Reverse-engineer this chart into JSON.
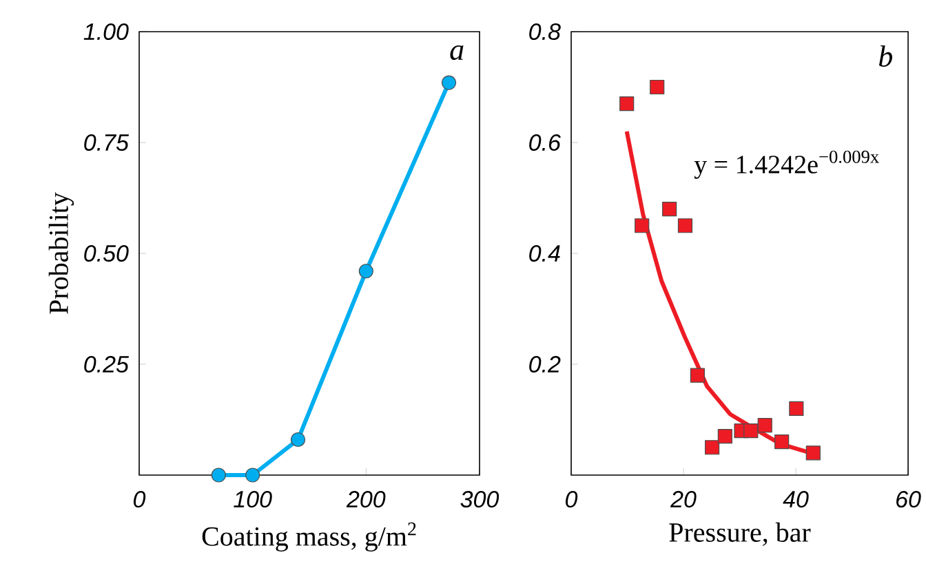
{
  "chart_data": [
    {
      "type": "line",
      "xlabel": "Coating mass, g/m$^{2}$",
      "ylabel": "Probability",
      "annotations": [
        "a"
      ],
      "marker": "circle",
      "xlim": [
        0,
        300
      ],
      "ylim": [
        0,
        1
      ],
      "xticks": [
        0,
        100,
        200,
        300
      ],
      "yticks": [
        {
          "value": 0.25,
          "label": "0.25"
        },
        {
          "value": 0.5,
          "label": "0.50"
        },
        {
          "value": 0.75,
          "label": "0.75"
        },
        {
          "value": 1,
          "label": "1.00"
        }
      ],
      "series": [
        {
          "color": "#00aeef",
          "x": [
            70,
            100,
            140,
            200,
            273
          ],
          "values": [
            0,
            0,
            0.08,
            0.46,
            0.885
          ]
        }
      ]
    },
    {
      "type": "scatter",
      "xlabel": "Pressure, bar",
      "annotations": [
        "b",
        "y = 1.4242e$^{−0.009x}$"
      ],
      "xlim": [
        0,
        60
      ],
      "ylim": [
        0,
        0.8
      ],
      "xticks": [
        0,
        20,
        40,
        60
      ],
      "yticks": [
        0.2,
        0.4,
        0.6,
        0.8
      ],
      "series": [
        {
          "color": "#ed1c24",
          "marker": "square",
          "x": [
            9.9,
            15.3,
            12.6,
            17.5,
            20.3,
            22.5,
            25.1,
            27.4,
            30.3,
            32.0,
            34.5,
            37.5,
            40.1,
            43.1
          ],
          "values": [
            0.67,
            0.7,
            0.45,
            0.48,
            0.45,
            0.18,
            0.05,
            0.07,
            0.08,
            0.08,
            0.09,
            0.06,
            0.12,
            0.04
          ]
        },
        {
          "type": "line",
          "color": "#ed1c24",
          "x": [
            9.9,
            12.8,
            16.1,
            20.2,
            24.2,
            28.3,
            32.4,
            37.3,
            42.7
          ],
          "values": [
            0.62,
            0.47,
            0.35,
            0.25,
            0.16,
            0.11,
            0.085,
            0.056,
            0.04
          ]
        }
      ]
    }
  ]
}
